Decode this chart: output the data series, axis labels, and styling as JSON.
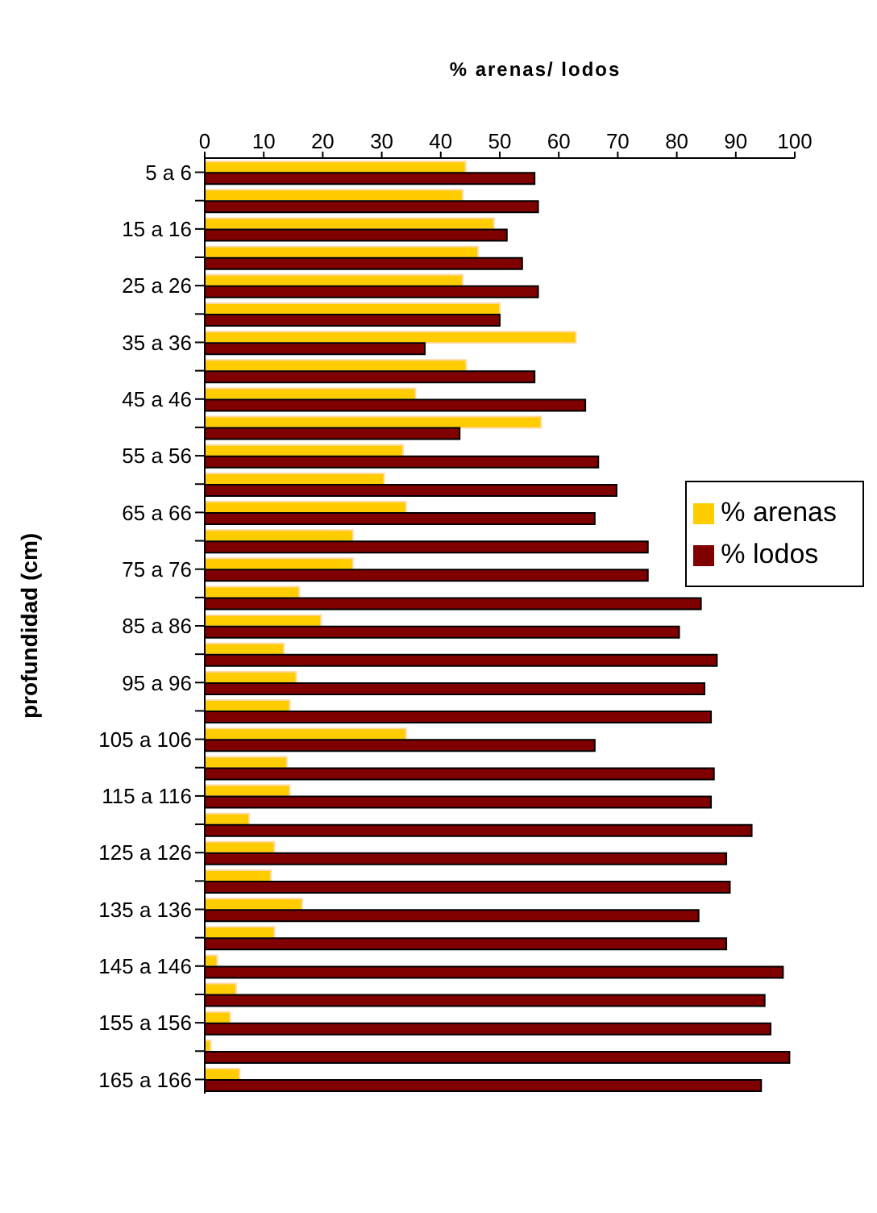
{
  "chart_data": {
    "type": "bar",
    "orientation": "horizontal",
    "title": "% arenas/ lodos",
    "ylabel": "profundidad (cm)",
    "categories": [
      "5 a 6",
      null,
      "15 a 16",
      null,
      "25 a 26",
      null,
      "35 a 36",
      null,
      "45 a 46",
      null,
      "55 a 56",
      null,
      "65 a 66",
      null,
      "75 a 76",
      null,
      "85 a 86",
      null,
      "95 a 96",
      null,
      "105 a 106",
      null,
      "115 a 116",
      null,
      "125 a 126",
      null,
      "135 a 136",
      null,
      "145 a 146",
      null,
      "155 a 156",
      null,
      "165 a 166"
    ],
    "series": [
      {
        "name": "% arenas",
        "color": "#ffcc00",
        "values": [
          44.2,
          43.7,
          49,
          46.3,
          43.7,
          50,
          62.9,
          44.3,
          35.7,
          57,
          33.6,
          30.4,
          34.1,
          25.1,
          25.1,
          16,
          19.7,
          13.4,
          15.5,
          14.4,
          34.1,
          13.9,
          14.4,
          7.5,
          11.8,
          11.2,
          16.5,
          11.8,
          2.1,
          5.3,
          4.3,
          1,
          5.9
        ]
      },
      {
        "name": "% lodos",
        "color": "#800000",
        "values": [
          55.9,
          56.5,
          51.2,
          53.8,
          56.5,
          50,
          37.3,
          55.9,
          64.5,
          43.2,
          66.7,
          69.8,
          66.1,
          75.1,
          75.1,
          84.1,
          80.4,
          86.8,
          84.7,
          85.8,
          66.1,
          86.3,
          85.8,
          92.7,
          88.4,
          89,
          83.7,
          88.4,
          98,
          94.9,
          95.9,
          99.1,
          94.3
        ]
      }
    ],
    "xlim": [
      0,
      100
    ],
    "xticks": [
      0,
      10,
      20,
      30,
      40,
      50,
      60,
      70,
      80,
      90,
      100
    ],
    "legend": "right"
  }
}
